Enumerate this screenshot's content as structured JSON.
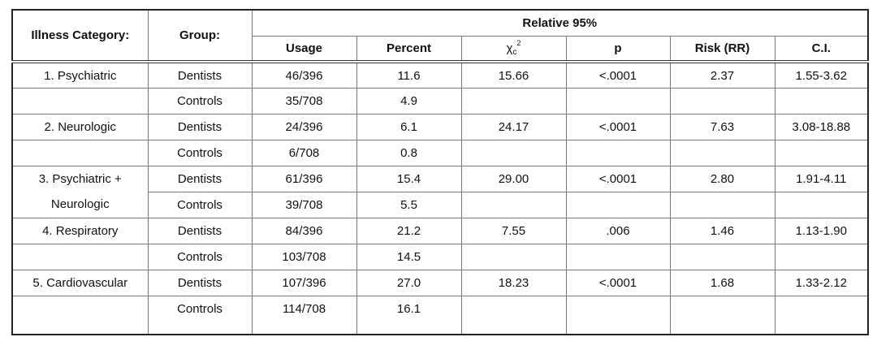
{
  "table": {
    "header": {
      "category": "Illness Category:",
      "group": "Group:",
      "span": "Relative 95%",
      "columns": [
        "Usage",
        "Percent",
        {
          "symbol": "χ",
          "sub": "c",
          "sup": "2"
        },
        "p",
        "Risk (RR)",
        "C.I."
      ]
    },
    "rows": [
      [
        "1. Psychiatric",
        "Dentists",
        "46/396",
        "11.6",
        "15.66",
        "<.0001",
        "2.37",
        "1.55-3.62"
      ],
      [
        null,
        "Controls",
        "35/708",
        "4.9",
        null,
        null,
        null,
        null
      ],
      [
        "2. Neurologic",
        "Dentists",
        "24/396",
        "6.1",
        "24.17",
        "<.0001",
        "7.63",
        "3.08-18.88"
      ],
      [
        null,
        "Controls",
        "6/708",
        "0.8",
        null,
        null,
        null,
        null
      ],
      [
        "3. Psychiatric +",
        "Dentists",
        "61/396",
        "15.4",
        "29.00",
        "<.0001",
        "2.80",
        "1.91-4.11"
      ],
      [
        "Neurologic",
        "Controls",
        "39/708",
        "5.5",
        null,
        null,
        null,
        null
      ],
      [
        "4. Respiratory",
        "Dentists",
        "84/396",
        "21.2",
        "7.55",
        ".006",
        "1.46",
        "1.13-1.90"
      ],
      [
        null,
        "Controls",
        "103/708",
        "14.5",
        null,
        null,
        null,
        null
      ],
      [
        "5. Cardiovascular",
        "Dentists",
        "107/396",
        "27.0",
        "18.23",
        "<.0001",
        "1.68",
        "1.33-2.12"
      ],
      [
        null,
        "Controls",
        "114/708",
        "16.1",
        null,
        null,
        null,
        null
      ]
    ]
  }
}
